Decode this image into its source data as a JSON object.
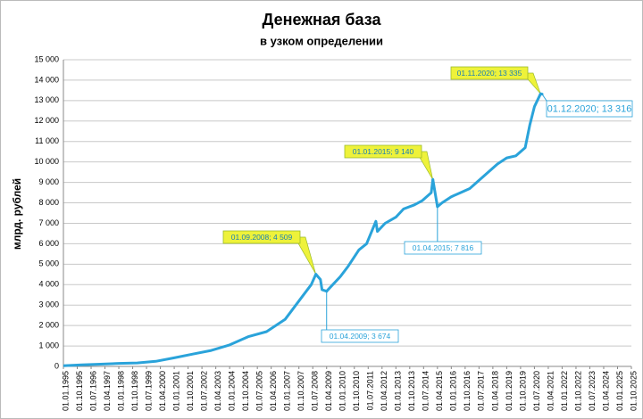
{
  "chart_data": {
    "type": "line",
    "title": "Денежная база",
    "subtitle": "в узком определении",
    "y_label": "млрд. рублей",
    "color": "#2aa3da",
    "grid": true,
    "xlim": [
      "01.01.1995",
      "01.10.2025"
    ],
    "xticks": [
      "01.01.1995",
      "01.10.1995",
      "01.07.1996",
      "01.04.1997",
      "01.01.1998",
      "01.10.1998",
      "01.07.1999",
      "01.04.2000",
      "01.01.2001",
      "01.10.2001",
      "01.07.2002",
      "01.04.2003",
      "01.01.2004",
      "01.10.2004",
      "01.07.2005",
      "01.04.2006",
      "01.01.2007",
      "01.10.2007",
      "01.07.2008",
      "01.04.2009",
      "01.01.2010",
      "01.10.2010",
      "01.07.2011",
      "01.04.2012",
      "01.01.2013",
      "01.10.2013",
      "01.07.2014",
      "01.04.2015",
      "01.01.2016",
      "01.10.2016",
      "01.07.2017",
      "01.04.2018",
      "01.01.2019",
      "01.10.2019",
      "01.07.2020",
      "01.04.2021",
      "01.01.2022",
      "01.10.2022",
      "01.07.2023",
      "01.04.2024",
      "01.01.2025",
      "01.10.2025"
    ],
    "ylim": [
      0,
      15000
    ],
    "yticks": [
      0,
      {
        "value": 1000,
        "label": "1 000"
      },
      {
        "value": 2000,
        "label": "2 000"
      },
      {
        "value": 3000,
        "label": "3 000"
      },
      {
        "value": 4000,
        "label": "4 000"
      },
      {
        "value": 5000,
        "label": "5 000"
      },
      {
        "value": 6000,
        "label": "6 000"
      },
      {
        "value": 7000,
        "label": "7 000"
      },
      {
        "value": 8000,
        "label": "8 000"
      },
      {
        "value": 9000,
        "label": "9 000"
      },
      {
        "value": 10000,
        "label": "10 000"
      },
      {
        "value": 11000,
        "label": "11 000"
      },
      {
        "value": 12000,
        "label": "12 000"
      },
      {
        "value": 13000,
        "label": "13 000"
      },
      {
        "value": 14000,
        "label": "14 000"
      },
      {
        "value": 15000,
        "label": "15 000"
      }
    ],
    "x": [
      "01.01.1995",
      "01.01.1996",
      "01.01.1997",
      "01.01.1998",
      "01.01.1999",
      "01.01.2000",
      "01.01.2001",
      "01.01.2002",
      "01.01.2003",
      "01.01.2004",
      "01.01.2005",
      "01.01.2006",
      "01.01.2007",
      "01.01.2008",
      "01.06.2008",
      "01.09.2008",
      "01.12.2008",
      "01.01.2009",
      "01.04.2009",
      "01.01.2010",
      "01.06.2010",
      "01.01.2011",
      "01.06.2011",
      "01.12.2011",
      "01.01.2012",
      "01.06.2012",
      "01.01.2013",
      "01.06.2013",
      "01.01.2014",
      "01.06.2014",
      "01.12.2014",
      "01.01.2015",
      "01.04.2015",
      "01.07.2015",
      "01.01.2016",
      "01.07.2016",
      "01.01.2017",
      "01.07.2017",
      "01.01.2018",
      "01.07.2018",
      "01.01.2019",
      "01.07.2019",
      "01.01.2020",
      "01.04.2020",
      "01.07.2020",
      "01.11.2020",
      "01.12.2020"
    ],
    "values": [
      30,
      80,
      110,
      150,
      170,
      250,
      420,
      600,
      780,
      1050,
      1450,
      1700,
      2300,
      3500,
      4000,
      4509,
      4250,
      3750,
      3674,
      4400,
      4900,
      5700,
      6000,
      7100,
      6600,
      7000,
      7300,
      7700,
      7900,
      8100,
      8500,
      9140,
      7816,
      8000,
      8300,
      8500,
      8700,
      9100,
      9500,
      9900,
      10200,
      10300,
      10700,
      11800,
      12700,
      13335,
      13316
    ],
    "annotations": [
      {
        "x": "01.09.2008",
        "value": 4509,
        "label": "01.09.2008; 4 509",
        "fill": "#eef23a"
      },
      {
        "x": "01.04.2009",
        "value": 3674,
        "label": "01.04.2009; 3 674",
        "fill": "#ffffff"
      },
      {
        "x": "01.01.2015",
        "value": 9140,
        "label": "01.01.2015; 9 140",
        "fill": "#eef23a"
      },
      {
        "x": "01.04.2015",
        "value": 7816,
        "label": "01.04.2015; 7 816",
        "fill": "#ffffff"
      },
      {
        "x": "01.11.2020",
        "value": 13335,
        "label": "01.11.2020; 13 335",
        "fill": "#eef23a"
      },
      {
        "x": "01.12.2020",
        "value": 13316,
        "label": "01.12.2020; 13 316",
        "fill": "#ffffff"
      }
    ]
  }
}
